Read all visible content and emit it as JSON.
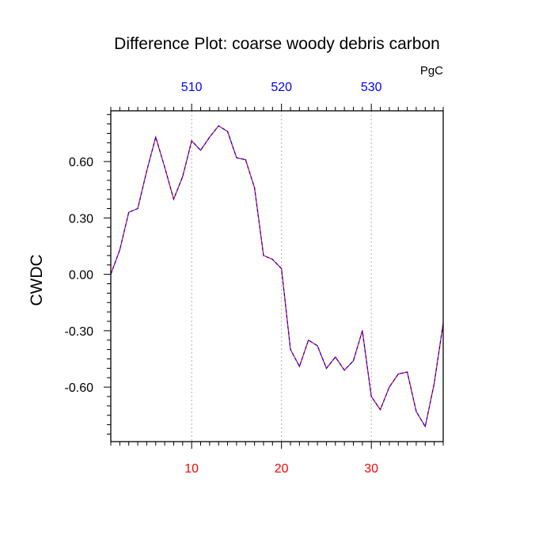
{
  "chart_data": {
    "type": "line",
    "title": "Difference Plot: coarse woody debris carbon",
    "units": "PgC",
    "ylabel": "CWDC",
    "xlabel": "",
    "xlim": [
      1,
      38
    ],
    "ylim": [
      -0.89,
      0.87
    ],
    "grid": "vertical dotted at labelled bottom ticks",
    "bottom_axis": {
      "ticks": [
        10,
        20,
        30
      ],
      "tick_labels": [
        "10",
        "20",
        "30"
      ],
      "label_color": "#ff0000"
    },
    "top_axis": {
      "ticks": [
        10,
        20,
        30
      ],
      "tick_labels": [
        "510",
        "520",
        "530"
      ],
      "label_color": "#0000ff"
    },
    "left_axis": {
      "ticks": [
        0.6,
        0.3,
        0.0,
        -0.3,
        -0.6
      ],
      "tick_labels": [
        "0.60",
        "0.30",
        "0.00",
        "-0.30",
        "-0.60"
      ]
    },
    "series": [
      {
        "line_style": "dashed",
        "colors": [
          "#0000ff",
          "#ff0000"
        ],
        "x": [
          1,
          2,
          3,
          4,
          5,
          6,
          7,
          8,
          9,
          10,
          11,
          12,
          13,
          14,
          15,
          16,
          17,
          18,
          19,
          20,
          21,
          22,
          23,
          24,
          25,
          26,
          27,
          28,
          29,
          30,
          31,
          32,
          33,
          34,
          35,
          36,
          37,
          38
        ],
        "values": [
          0.0,
          0.13,
          0.33,
          0.35,
          0.55,
          0.73,
          0.57,
          0.4,
          0.52,
          0.71,
          0.66,
          0.73,
          0.79,
          0.76,
          0.62,
          0.61,
          0.46,
          0.1,
          0.08,
          0.03,
          -0.4,
          -0.49,
          -0.35,
          -0.38,
          -0.5,
          -0.44,
          -0.51,
          -0.46,
          -0.3,
          -0.65,
          -0.72,
          -0.6,
          -0.53,
          -0.52,
          -0.73,
          -0.81,
          -0.58,
          -0.26
        ]
      }
    ]
  }
}
